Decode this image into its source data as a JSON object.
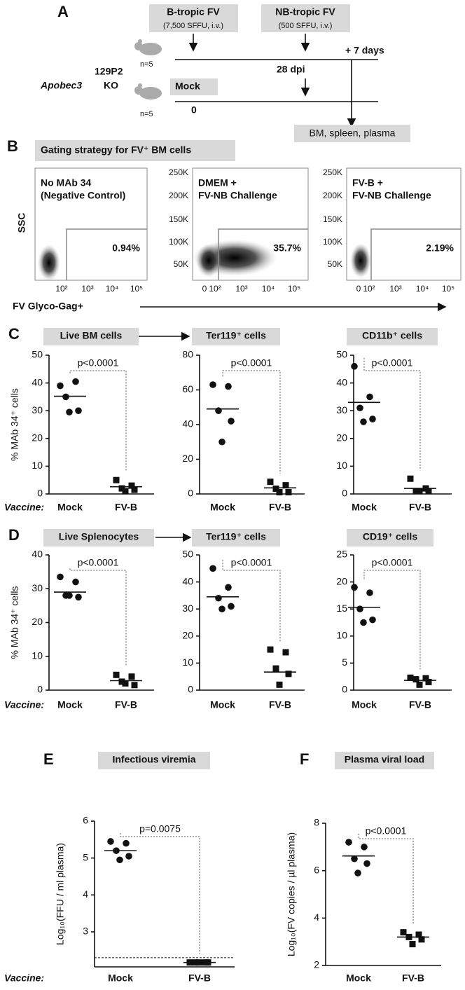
{
  "panel_a": {
    "label": "A",
    "b_tropic": "B-tropic FV",
    "b_tropic_dose": "(7,500 SFFU, i.v.)",
    "nb_tropic": "NB-tropic FV",
    "nb_tropic_dose": "(500 SFFU, i.v.)",
    "plus_days": "+ 7 days",
    "mouse_strain": "129P2",
    "ko_gene": "Apobec3",
    "ko_suffix": "KO",
    "n_top": "n=5",
    "n_bottom": "n=5",
    "dpi": "28 dpi",
    "mock": "Mock",
    "day0": "0",
    "harvest": "BM, spleen, plasma"
  },
  "panel_b": {
    "label": "B",
    "title": "Gating strategy for FV⁺ BM cells",
    "ylabel": "SSC",
    "xlabel": "FV Glyco-Gag+",
    "plots": [
      {
        "title": [
          "No MAb 34",
          "(Negative Control)"
        ],
        "gate": "0.94%",
        "xticks": [
          "10²",
          "10³",
          "10⁴",
          "10⁵"
        ],
        "yticks": []
      },
      {
        "title": [
          "DMEM +",
          "FV-NB Challenge"
        ],
        "gate": "35.7%",
        "xticks": [
          "0",
          "10²",
          "10³",
          "10⁴",
          "10⁵"
        ],
        "yticks": [
          "50K",
          "100K",
          "150K",
          "200K",
          "250K"
        ]
      },
      {
        "title": [
          "FV-B +",
          "FV-NB Challenge"
        ],
        "gate": "2.19%",
        "xticks": [
          "0",
          "10²",
          "10³",
          "10⁴",
          "10⁵"
        ],
        "yticks": [
          "50K",
          "100K",
          "150K",
          "200K",
          "250K"
        ]
      }
    ]
  },
  "chart_data": [
    {
      "type": "dot",
      "panel": "C",
      "title": "Live BM cells",
      "ylabel": "% MAb 34⁺ cells",
      "row_label": "Vaccine:",
      "categories": [
        "Mock",
        "FV-B"
      ],
      "markers": [
        "circle",
        "square"
      ],
      "values": [
        [
          39,
          40.5,
          35,
          30,
          29.5
        ],
        [
          5,
          3,
          2,
          1.5,
          1
        ]
      ],
      "means": [
        35.2,
        2.6
      ],
      "annotation": "p<0.0001",
      "ylim": [
        0,
        50
      ],
      "yticks": [
        0,
        10,
        20,
        30,
        40,
        50
      ]
    },
    {
      "type": "dot",
      "title": "Ter119⁺ cells",
      "categories": [
        "Mock",
        "FV-B"
      ],
      "markers": [
        "circle",
        "square"
      ],
      "values": [
        [
          63,
          62,
          48,
          42,
          30
        ],
        [
          7,
          5,
          3,
          1,
          1
        ]
      ],
      "means": [
        49,
        3.5
      ],
      "annotation": "p<0.0001",
      "ylim": [
        0,
        80
      ],
      "yticks": [
        0,
        20,
        40,
        60,
        80
      ]
    },
    {
      "type": "dot",
      "title": "CD11b⁺ cells",
      "categories": [
        "Mock",
        "FV-B"
      ],
      "markers": [
        "circle",
        "square"
      ],
      "values": [
        [
          46,
          35,
          31,
          27,
          26
        ],
        [
          5.5,
          2,
          1,
          1,
          1
        ]
      ],
      "means": [
        33,
        2
      ],
      "annotation": "p<0.0001",
      "ylim": [
        0,
        50
      ],
      "yticks": [
        0,
        10,
        20,
        30,
        40,
        50
      ]
    },
    {
      "type": "dot",
      "panel": "D",
      "title": "Live Splenocytes",
      "ylabel": "% MAb 34⁺ cells",
      "row_label": "Vaccine:",
      "categories": [
        "Mock",
        "FV-B"
      ],
      "markers": [
        "circle",
        "square"
      ],
      "values": [
        [
          33.5,
          32,
          28,
          27.5,
          28
        ],
        [
          4.5,
          4,
          2.5,
          1.5,
          2
        ]
      ],
      "means": [
        29,
        2.8
      ],
      "annotation": "p<0.0001",
      "ylim": [
        0,
        40
      ],
      "yticks": [
        0,
        10,
        20,
        30,
        40
      ]
    },
    {
      "type": "dot",
      "title": "Ter119⁺ cells",
      "categories": [
        "Mock",
        "FV-B"
      ],
      "markers": [
        "circle",
        "square"
      ],
      "values": [
        [
          45,
          38,
          34,
          31,
          30
        ],
        [
          15,
          14,
          8,
          6,
          2
        ]
      ],
      "means": [
        34.5,
        6.7
      ],
      "annotation": "p<0.0001",
      "ylim": [
        0,
        50
      ],
      "yticks": [
        0,
        10,
        20,
        30,
        40,
        50
      ]
    },
    {
      "type": "dot",
      "title": "CD19⁺ cells",
      "categories": [
        "Mock",
        "FV-B"
      ],
      "markers": [
        "circle",
        "square"
      ],
      "values": [
        [
          19,
          18,
          15,
          13,
          12.5
        ],
        [
          2.3,
          2.2,
          2,
          1.5,
          1
        ]
      ],
      "means": [
        15.3,
        1.8
      ],
      "annotation": "p<0.0001",
      "ylim": [
        0,
        25
      ],
      "yticks": [
        0,
        5,
        10,
        15,
        20,
        25
      ]
    },
    {
      "type": "dot",
      "panel": "E",
      "title": "Infectious viremia",
      "ylabel": "Log₁₀(FFU / ml plasma)",
      "row_label": "Vaccine:",
      "categories": [
        "Mock",
        "FV-B"
      ],
      "markers": [
        "circle",
        "square"
      ],
      "values": [
        [
          5.45,
          5.4,
          5.2,
          5.05,
          4.95
        ],
        [
          2.17,
          2.17,
          2.17,
          2.17,
          2.17
        ]
      ],
      "means": [
        5.2,
        2.17
      ],
      "limit": 2.3,
      "annotation": "p=0.0075",
      "ylim": [
        2.05,
        6
      ],
      "yticks": [
        3,
        4,
        5,
        6
      ]
    },
    {
      "type": "dot",
      "panel": "F",
      "title": "Plasma viral load",
      "ylabel": "Log₁₀(FV copies / µl plasma)",
      "categories": [
        "Mock",
        "FV-B"
      ],
      "markers": [
        "circle",
        "square"
      ],
      "values": [
        [
          7.2,
          7.0,
          6.5,
          6.3,
          5.9
        ],
        [
          3.4,
          3.3,
          3.2,
          3.1,
          2.9
        ]
      ],
      "means": [
        6.62,
        3.2
      ],
      "annotation": "p<0.0001",
      "ylim": [
        2,
        8
      ],
      "yticks": [
        2,
        4,
        6,
        8
      ]
    }
  ]
}
